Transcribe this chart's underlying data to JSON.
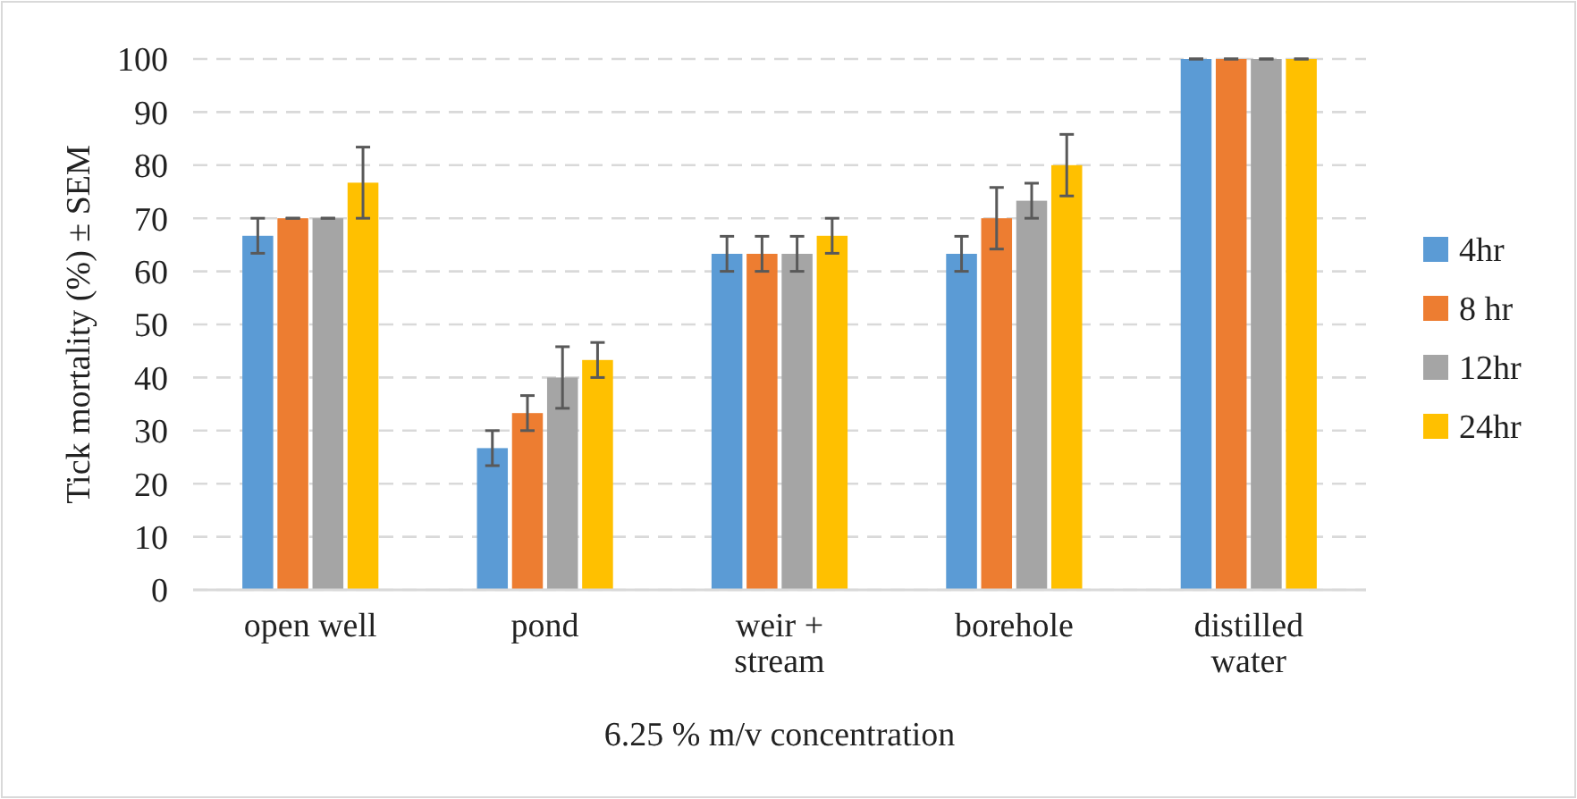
{
  "chart_data": {
    "type": "bar",
    "xlabel": "6.25 % m/v concentration",
    "ylabel": "Tick mortality (%) ± SEM",
    "categories": [
      "open well",
      "pond",
      "weir + stream",
      "borehole",
      "distilled water"
    ],
    "series": [
      {
        "name": "4hr",
        "color": "#5b9bd5",
        "values": [
          66.7,
          26.7,
          63.3,
          63.3,
          100
        ],
        "errors": [
          3.3,
          3.3,
          3.3,
          3.3,
          0
        ]
      },
      {
        "name": "8 hr",
        "color": "#ed7d31",
        "values": [
          70,
          33.3,
          63.3,
          70,
          100
        ],
        "errors": [
          0,
          3.3,
          3.3,
          5.8,
          0
        ]
      },
      {
        "name": "12hr",
        "color": "#a5a5a5",
        "values": [
          70,
          40,
          63.3,
          73.3,
          100
        ],
        "errors": [
          0,
          5.8,
          3.3,
          3.3,
          0
        ]
      },
      {
        "name": "24hr",
        "color": "#ffc000",
        "values": [
          76.7,
          43.3,
          66.7,
          80,
          100
        ],
        "errors": [
          6.7,
          3.3,
          3.3,
          5.8,
          0
        ]
      }
    ],
    "ylim": [
      0,
      100
    ],
    "yticks": [
      0,
      10,
      20,
      30,
      40,
      50,
      60,
      70,
      80,
      90,
      100
    ],
    "grid": "y",
    "legend": "right"
  }
}
